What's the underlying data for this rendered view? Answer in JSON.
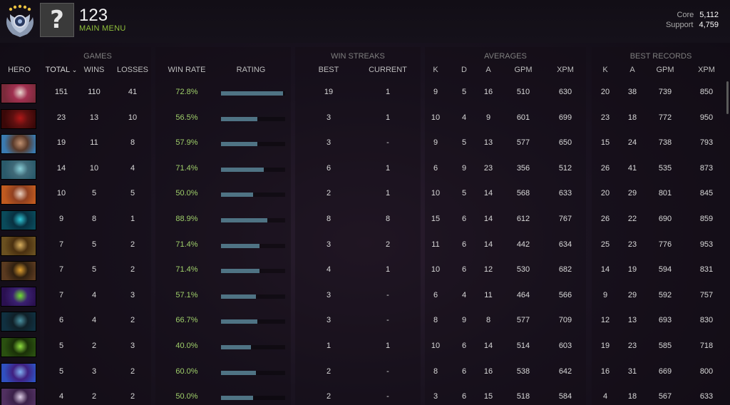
{
  "header": {
    "player_name": "123",
    "main_menu_label": "MAIN MENU",
    "avatar_glyph": "?",
    "rank_icon": "rank-medal-icon",
    "mmr": [
      {
        "label": "Core",
        "value": "5,112"
      },
      {
        "label": "Support",
        "value": "4,759"
      }
    ]
  },
  "table": {
    "groups": [
      "GAMES",
      "WIN STREAKS",
      "AVERAGES",
      "BEST RECORDS"
    ],
    "columns": [
      "HERO",
      "TOTAL",
      "WINS",
      "LOSSES",
      "WIN RATE",
      "RATING",
      "BEST",
      "CURRENT",
      "K",
      "D",
      "A",
      "GPM",
      "XPM",
      "K",
      "A",
      "GPM",
      "XPM"
    ],
    "sort_indicator": "⌄",
    "rows": [
      {
        "total": "151",
        "wins": "110",
        "losses": "41",
        "win_rate": "72.8%",
        "rating": 0.97,
        "best": "19",
        "current": "1",
        "k": "9",
        "d": "5",
        "a": "16",
        "gpm": "510",
        "xpm": "630",
        "best_k": "20",
        "best_a": "38",
        "best_gpm": "739",
        "best_xpm": "850",
        "hero_colors": [
          "#7a2a3a",
          "#e8d8d0",
          "#a03050"
        ]
      },
      {
        "total": "23",
        "wins": "13",
        "losses": "10",
        "win_rate": "56.5%",
        "rating": 0.57,
        "best": "3",
        "current": "1",
        "k": "10",
        "d": "4",
        "a": "9",
        "gpm": "601",
        "xpm": "699",
        "best_k": "23",
        "best_a": "18",
        "best_gpm": "772",
        "best_xpm": "950",
        "hero_colors": [
          "#3a0808",
          "#b01818",
          "#601010"
        ]
      },
      {
        "total": "19",
        "wins": "11",
        "losses": "8",
        "win_rate": "57.9%",
        "rating": 0.57,
        "best": "3",
        "current": "-",
        "k": "9",
        "d": "5",
        "a": "13",
        "gpm": "577",
        "xpm": "650",
        "best_k": "15",
        "best_a": "24",
        "best_gpm": "738",
        "best_xpm": "793",
        "hero_colors": [
          "#3a7ab0",
          "#c09070",
          "#5a3a2a"
        ]
      },
      {
        "total": "14",
        "wins": "10",
        "losses": "4",
        "win_rate": "71.4%",
        "rating": 0.67,
        "best": "6",
        "current": "1",
        "k": "6",
        "d": "9",
        "a": "23",
        "gpm": "356",
        "xpm": "512",
        "best_k": "26",
        "best_a": "41",
        "best_gpm": "535",
        "best_xpm": "873",
        "hero_colors": [
          "#2a5a6a",
          "#8ad0d8",
          "#406a78"
        ]
      },
      {
        "total": "10",
        "wins": "5",
        "losses": "5",
        "win_rate": "50.0%",
        "rating": 0.5,
        "best": "2",
        "current": "1",
        "k": "10",
        "d": "5",
        "a": "14",
        "gpm": "568",
        "xpm": "633",
        "best_k": "20",
        "best_a": "29",
        "best_gpm": "801",
        "best_xpm": "845",
        "hero_colors": [
          "#c05a20",
          "#e8d0c0",
          "#904020"
        ]
      },
      {
        "total": "9",
        "wins": "8",
        "losses": "1",
        "win_rate": "88.9%",
        "rating": 0.72,
        "best": "8",
        "current": "8",
        "k": "15",
        "d": "6",
        "a": "14",
        "gpm": "612",
        "xpm": "767",
        "best_k": "26",
        "best_a": "22",
        "best_gpm": "690",
        "best_xpm": "859",
        "hero_colors": [
          "#0a4a5a",
          "#30c8d8",
          "#083040"
        ]
      },
      {
        "total": "7",
        "wins": "5",
        "losses": "2",
        "win_rate": "71.4%",
        "rating": 0.6,
        "best": "3",
        "current": "2",
        "k": "11",
        "d": "6",
        "a": "14",
        "gpm": "442",
        "xpm": "634",
        "best_k": "25",
        "best_a": "23",
        "best_gpm": "776",
        "best_xpm": "953",
        "hero_colors": [
          "#6a5020",
          "#d8b060",
          "#4a3010"
        ]
      },
      {
        "total": "7",
        "wins": "5",
        "losses": "2",
        "win_rate": "71.4%",
        "rating": 0.6,
        "best": "4",
        "current": "1",
        "k": "10",
        "d": "6",
        "a": "12",
        "gpm": "530",
        "xpm": "682",
        "best_k": "14",
        "best_a": "19",
        "best_gpm": "594",
        "best_xpm": "831",
        "hero_colors": [
          "#5a3a20",
          "#e0a030",
          "#302010"
        ]
      },
      {
        "total": "7",
        "wins": "4",
        "losses": "3",
        "win_rate": "57.1%",
        "rating": 0.54,
        "best": "3",
        "current": "-",
        "k": "6",
        "d": "4",
        "a": "11",
        "gpm": "464",
        "xpm": "566",
        "best_k": "9",
        "best_a": "29",
        "best_gpm": "592",
        "best_xpm": "757",
        "hero_colors": [
          "#2a1050",
          "#70e030",
          "#3a2070"
        ]
      },
      {
        "total": "6",
        "wins": "4",
        "losses": "2",
        "win_rate": "66.7%",
        "rating": 0.57,
        "best": "3",
        "current": "-",
        "k": "8",
        "d": "9",
        "a": "8",
        "gpm": "577",
        "xpm": "709",
        "best_k": "12",
        "best_a": "13",
        "best_gpm": "693",
        "best_xpm": "830",
        "hero_colors": [
          "#103040",
          "#4a90a0",
          "#102028"
        ]
      },
      {
        "total": "5",
        "wins": "2",
        "losses": "3",
        "win_rate": "40.0%",
        "rating": 0.47,
        "best": "1",
        "current": "1",
        "k": "10",
        "d": "6",
        "a": "14",
        "gpm": "514",
        "xpm": "603",
        "best_k": "19",
        "best_a": "23",
        "best_gpm": "585",
        "best_xpm": "718",
        "hero_colors": [
          "#2a5010",
          "#90e040",
          "#1a3008"
        ]
      },
      {
        "total": "5",
        "wins": "3",
        "losses": "2",
        "win_rate": "60.0%",
        "rating": 0.54,
        "best": "2",
        "current": "-",
        "k": "8",
        "d": "6",
        "a": "16",
        "gpm": "538",
        "xpm": "642",
        "best_k": "16",
        "best_a": "31",
        "best_gpm": "669",
        "best_xpm": "800",
        "hero_colors": [
          "#3050c0",
          "#80b0f0",
          "#402080"
        ]
      },
      {
        "total": "4",
        "wins": "2",
        "losses": "2",
        "win_rate": "50.0%",
        "rating": 0.5,
        "best": "2",
        "current": "-",
        "k": "3",
        "d": "6",
        "a": "15",
        "gpm": "518",
        "xpm": "584",
        "best_k": "4",
        "best_a": "18",
        "best_gpm": "567",
        "best_xpm": "633",
        "hero_colors": [
          "#503060",
          "#e0d0e8",
          "#3a2048"
        ]
      }
    ]
  }
}
